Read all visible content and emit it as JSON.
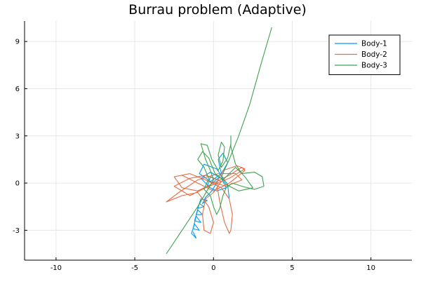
{
  "chart_data": {
    "type": "line",
    "title": "Burrau problem (Adaptive)",
    "xlabel": "",
    "ylabel": "",
    "xlim": [
      -12,
      12.6
    ],
    "ylim": [
      -4.9,
      10.3
    ],
    "xticks": [
      -10,
      -5,
      0,
      5,
      10
    ],
    "yticks": [
      -3,
      0,
      3,
      6,
      9
    ],
    "grid": true,
    "legend_position": "top-right",
    "series": [
      {
        "name": "Body-1",
        "color": "#009AF9",
        "points": [
          [
            1.0,
            -1.0
          ],
          [
            0.9,
            -0.1
          ],
          [
            0.2,
            0.9
          ],
          [
            -0.6,
            1.2
          ],
          [
            -0.9,
            0.6
          ],
          [
            -0.2,
            0.1
          ],
          [
            0.5,
            0.6
          ],
          [
            0.3,
            1.5
          ],
          [
            0.6,
            1.9
          ],
          [
            0.9,
            1.3
          ],
          [
            0.4,
            0.4
          ],
          [
            -0.3,
            -0.2
          ],
          [
            -0.8,
            0.3
          ],
          [
            -0.2,
            0.7
          ],
          [
            0.5,
            0.3
          ],
          [
            0.8,
            -0.3
          ],
          [
            0.2,
            -0.5
          ],
          [
            -0.4,
            -0.2
          ],
          [
            -0.2,
            0.4
          ],
          [
            0.3,
            0.2
          ],
          [
            -0.1,
            -0.5
          ],
          [
            -0.5,
            -0.9
          ],
          [
            -0.7,
            -1.3
          ],
          [
            -0.4,
            -1.1
          ],
          [
            -0.8,
            -1.0
          ],
          [
            -1.0,
            -1.6
          ],
          [
            -0.6,
            -1.5
          ],
          [
            -0.9,
            -1.3
          ],
          [
            -1.1,
            -2.0
          ],
          [
            -0.7,
            -2.0
          ],
          [
            -1.0,
            -1.7
          ],
          [
            -1.2,
            -2.4
          ],
          [
            -0.8,
            -2.5
          ],
          [
            -1.1,
            -2.1
          ],
          [
            -1.3,
            -2.9
          ],
          [
            -0.9,
            -3.0
          ],
          [
            -1.2,
            -2.6
          ],
          [
            -1.4,
            -3.2
          ],
          [
            -1.1,
            -3.5
          ],
          [
            -1.3,
            -3.1
          ]
        ]
      },
      {
        "name": "Body-2",
        "color": "#E26F46",
        "points": [
          [
            -2.0,
            0.5
          ],
          [
            -1.0,
            0.0
          ],
          [
            0.0,
            -0.5
          ],
          [
            1.0,
            0.0
          ],
          [
            2.0,
            0.8
          ],
          [
            1.8,
            1.0
          ],
          [
            1.0,
            0.5
          ],
          [
            0.0,
            0.0
          ],
          [
            -1.0,
            -0.5
          ],
          [
            -2.0,
            -0.3
          ],
          [
            -2.5,
            0.4
          ],
          [
            -1.5,
            0.6
          ],
          [
            -0.5,
            0.2
          ],
          [
            0.5,
            -0.3
          ],
          [
            1.0,
            -1.0
          ],
          [
            1.2,
            -2.0
          ],
          [
            1.1,
            -3.0
          ],
          [
            1.0,
            -3.2
          ],
          [
            0.7,
            -2.5
          ],
          [
            0.4,
            -1.2
          ],
          [
            0.2,
            0.0
          ],
          [
            0.6,
            0.8
          ],
          [
            1.5,
            1.1
          ],
          [
            2.0,
            0.9
          ],
          [
            1.0,
            0.3
          ],
          [
            -0.5,
            -0.3
          ],
          [
            -1.5,
            -0.8
          ],
          [
            -2.5,
            -0.2
          ],
          [
            -1.5,
            0.3
          ],
          [
            -0.5,
            0.5
          ],
          [
            0.5,
            0.1
          ],
          [
            0.0,
            -0.6
          ],
          [
            -0.5,
            -1.0
          ],
          [
            -0.7,
            -2.0
          ],
          [
            -0.6,
            -3.0
          ],
          [
            -0.2,
            -3.2
          ],
          [
            0.0,
            -2.5
          ],
          [
            -0.3,
            -1.5
          ],
          [
            -1.0,
            -0.6
          ],
          [
            -2.0,
            -0.8
          ],
          [
            -3.0,
            -1.2
          ],
          [
            -2.2,
            -0.6
          ],
          [
            -1.0,
            0.2
          ],
          [
            0.3,
            0.6
          ],
          [
            1.4,
            0.6
          ],
          [
            1.8,
            0.2
          ],
          [
            0.8,
            -0.2
          ],
          [
            -0.2,
            0.1
          ]
        ]
      },
      {
        "name": "Body-3",
        "color": "#3DA44D",
        "points": [
          [
            -3.0,
            -4.5
          ],
          [
            -2.0,
            -3.0
          ],
          [
            -1.0,
            -1.5
          ],
          [
            -0.3,
            -0.3
          ],
          [
            0.0,
            0.2
          ],
          [
            -0.2,
            0.8
          ],
          [
            -0.5,
            1.5
          ],
          [
            -0.8,
            2.5
          ],
          [
            -0.4,
            2.4
          ],
          [
            -0.1,
            1.5
          ],
          [
            0.3,
            0.8
          ],
          [
            0.6,
            1.4
          ],
          [
            0.7,
            2.3
          ],
          [
            0.5,
            2.6
          ],
          [
            0.3,
            1.8
          ],
          [
            0.5,
            1.0
          ],
          [
            0.9,
            1.6
          ],
          [
            1.1,
            2.5
          ],
          [
            1.1,
            3.0
          ],
          [
            1.1,
            2.3
          ],
          [
            1.4,
            1.2
          ],
          [
            1.8,
            0.6
          ],
          [
            2.6,
            0.7
          ],
          [
            3.1,
            0.4
          ],
          [
            3.2,
            -0.2
          ],
          [
            2.6,
            -0.4
          ],
          [
            1.8,
            -0.2
          ],
          [
            1.2,
            0.0
          ],
          [
            0.8,
            -0.3
          ],
          [
            0.6,
            -0.8
          ],
          [
            0.4,
            -1.6
          ],
          [
            0.2,
            -2.0
          ],
          [
            0.0,
            -1.5
          ],
          [
            -0.2,
            -0.8
          ],
          [
            -0.6,
            -0.4
          ],
          [
            -0.3,
            0.3
          ],
          [
            -0.6,
            1.0
          ],
          [
            -1.0,
            1.5
          ],
          [
            -0.7,
            2.0
          ],
          [
            -0.3,
            1.6
          ],
          [
            0.1,
            0.6
          ],
          [
            0.6,
            0.2
          ],
          [
            1.0,
            0.6
          ],
          [
            1.4,
            1.0
          ],
          [
            2.0,
            0.4
          ],
          [
            2.5,
            -0.3
          ],
          [
            1.6,
            -0.5
          ],
          [
            0.8,
            -0.1
          ],
          [
            0.5,
            0.4
          ],
          [
            1.0,
            1.5
          ],
          [
            1.6,
            3.0
          ],
          [
            2.3,
            5.0
          ],
          [
            3.0,
            7.5
          ],
          [
            3.7,
            9.9
          ]
        ]
      }
    ]
  }
}
